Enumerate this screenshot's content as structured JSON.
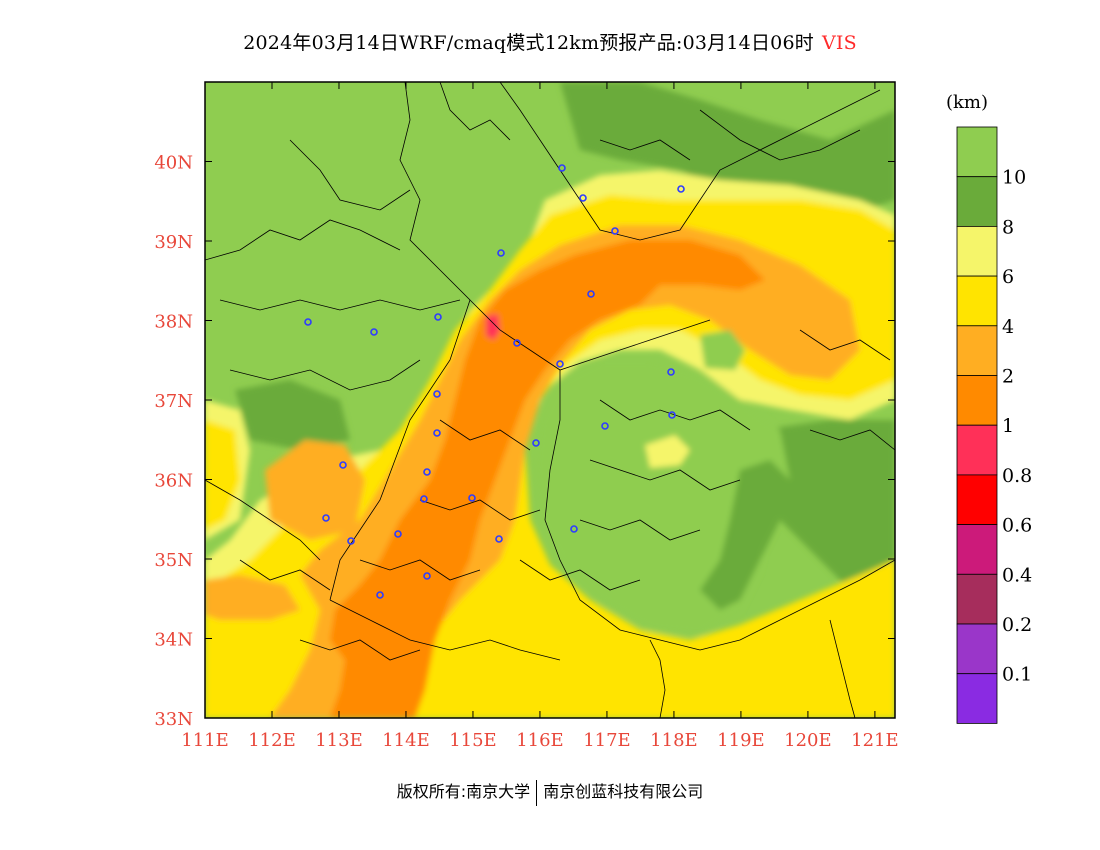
{
  "title": "2024年03月14日WRF/cmaq模式12km预报产品:03月14日06时",
  "variable": "VIS",
  "copyright": {
    "left": "版权所有:南京大学",
    "right": "南京创蓝科技有限公司"
  },
  "map": {
    "lon_labels": [
      "111E",
      "112E",
      "113E",
      "114E",
      "115E",
      "116E",
      "117E",
      "118E",
      "119E",
      "120E",
      "121E"
    ],
    "lat_labels": [
      "40N",
      "39N",
      "38N",
      "37N",
      "36N",
      "35N",
      "34N",
      "33N"
    ],
    "lon_range": [
      111,
      121.3
    ],
    "lat_range": [
      33,
      41
    ],
    "axis_label_color": "#e8473a"
  },
  "colorbar": {
    "unit": "(km)",
    "labels": [
      "10",
      "8",
      "6",
      "4",
      "2",
      "1",
      "0.8",
      "0.6",
      "0.4",
      "0.2",
      "0.1"
    ],
    "colors_top_to_bottom": [
      "#8fcd50",
      "#6aab3a",
      "#f5f56a",
      "#ffe400",
      "#ffae22",
      "#ff8a00",
      "#ff3058",
      "#ff0000",
      "#cc1a7a",
      "#a62d5c",
      "#9a36c9",
      "#8a2be2"
    ]
  },
  "colors": {
    "green": "#8fcd50",
    "dark_green": "#6aab3a",
    "light_yellow": "#f5f56a",
    "yellow": "#ffe400",
    "light_orange": "#ffae22",
    "orange": "#ff8a00",
    "pink": "#ff3058"
  }
}
